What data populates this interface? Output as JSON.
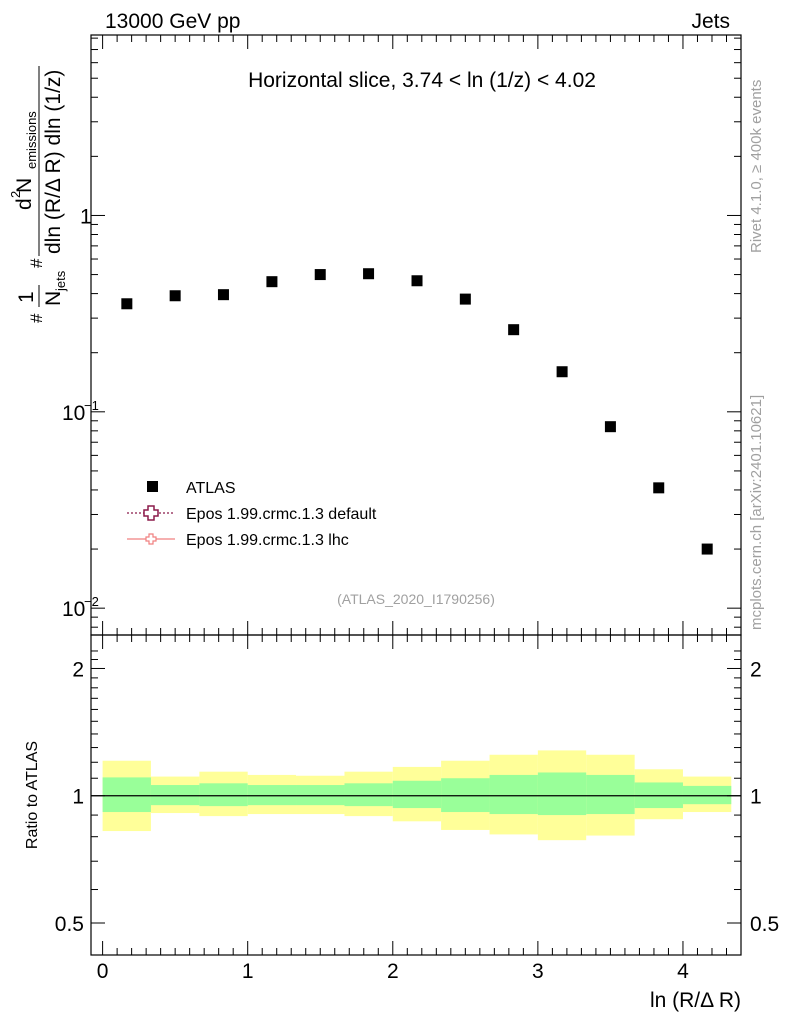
{
  "header": {
    "left": "13000 GeV pp",
    "right": "Jets"
  },
  "side_labels": {
    "rivet": "Rivet 4.1.0, ≥ 400k events",
    "mcplots": "mcplots.cern.ch [arXiv:2401.10621]"
  },
  "chart_data": [
    {
      "type": "scatter",
      "title": "Horizontal slice, 3.74 < ln (1/z) < 4.02",
      "analysis_tag": "(ATLAS_2020_I1790256)",
      "ylabel_parts": {
        "one": "1",
        "njets": "N",
        "njets_sub": "jets",
        "hash": "#",
        "d2": "d",
        "d2_sup": "2",
        "nem": " N",
        "nem_sub": "emissions",
        "den": "dln (R/Δ R) dln (1/z)"
      },
      "yscale": "log",
      "ylim": [
        0.0073,
        8.3
      ],
      "xlim": [
        -0.08,
        4.4
      ],
      "y_ticks": [
        {
          "value": 1,
          "label": "1"
        },
        {
          "value": 0.1,
          "label": "10",
          "exp": "−1"
        },
        {
          "value": 0.01,
          "label": "10",
          "exp": "−2"
        }
      ],
      "series": [
        {
          "name": "ATLAS",
          "marker": "square",
          "color": "#000000",
          "x": [
            0.167,
            0.5,
            0.833,
            1.167,
            1.5,
            1.833,
            2.167,
            2.5,
            2.833,
            3.167,
            3.5,
            3.833,
            4.167
          ],
          "y": [
            0.355,
            0.39,
            0.395,
            0.46,
            0.5,
            0.505,
            0.465,
            0.375,
            0.262,
            0.16,
            0.084,
            0.041,
            0.02
          ]
        }
      ],
      "legend": [
        {
          "label": "ATLAS",
          "style": "square"
        },
        {
          "label": "Epos 1.99.crmc.1.3 default",
          "style": "dotted-cross",
          "color": "#8b1a4a"
        },
        {
          "label": "Epos 1.99.crmc.1.3 lhc",
          "style": "solid-cross",
          "color": "#f08080"
        }
      ],
      "legend_position": "bottom-left"
    },
    {
      "type": "area",
      "ylabel": "Ratio to ATLAS",
      "xlabel": "ln (R/Δ R)",
      "yscale": "log",
      "ylim": [
        0.42,
        2.4
      ],
      "xlim": [
        -0.08,
        4.4
      ],
      "reference_line": 1,
      "x_ticks": [
        0,
        1,
        2,
        3,
        4
      ],
      "x_tick_labels": [
        "0",
        "1",
        "2",
        "3",
        "4"
      ],
      "y_ticks": [
        0.5,
        1,
        2
      ],
      "y_tick_labels": [
        "0.5",
        "1",
        "2"
      ],
      "bin_edges": [
        0,
        0.333,
        0.667,
        1.0,
        1.333,
        1.667,
        2.0,
        2.333,
        2.667,
        3.0,
        3.333,
        3.667,
        4.0,
        4.333
      ],
      "stat_band": {
        "name": "stat",
        "color": "#99ff99",
        "low": [
          0.915,
          0.95,
          0.945,
          0.95,
          0.95,
          0.945,
          0.935,
          0.915,
          0.905,
          0.9,
          0.905,
          0.935,
          0.955
        ],
        "high": [
          1.105,
          1.06,
          1.07,
          1.06,
          1.06,
          1.07,
          1.085,
          1.1,
          1.12,
          1.135,
          1.12,
          1.075,
          1.055
        ]
      },
      "syst_band": {
        "name": "stat+syst",
        "color": "#ffff99",
        "low": [
          0.825,
          0.91,
          0.895,
          0.905,
          0.905,
          0.895,
          0.87,
          0.83,
          0.81,
          0.785,
          0.805,
          0.88,
          0.915
        ],
        "high": [
          1.21,
          1.11,
          1.14,
          1.12,
          1.115,
          1.14,
          1.17,
          1.21,
          1.25,
          1.28,
          1.25,
          1.155,
          1.11
        ]
      }
    }
  ]
}
